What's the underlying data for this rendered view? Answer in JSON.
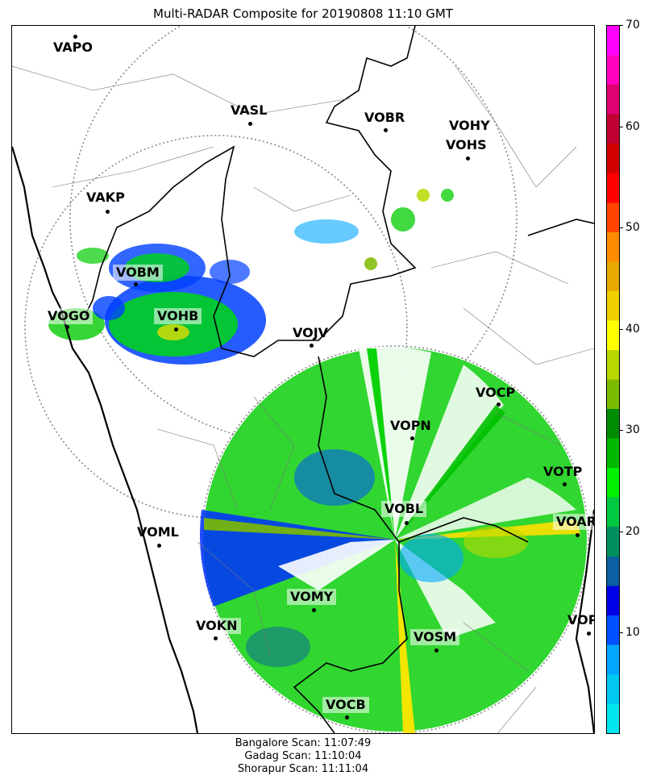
{
  "title": "Multi-RADAR Composite for 20190808 11:10 GMT",
  "stations": [
    {
      "id": "VAPO",
      "label": "VAPO"
    },
    {
      "id": "VASL",
      "label": "VASL"
    },
    {
      "id": "VOBR",
      "label": "VOBR"
    },
    {
      "id": "VOHY",
      "label": "VOHY"
    },
    {
      "id": "VOHS",
      "label": "VOHS"
    },
    {
      "id": "VAKP",
      "label": "VAKP"
    },
    {
      "id": "VOBM",
      "label": "VOBM"
    },
    {
      "id": "VOGO",
      "label": "VOGO"
    },
    {
      "id": "VOHB",
      "label": "VOHB"
    },
    {
      "id": "VOJV",
      "label": "VOJV"
    },
    {
      "id": "VOCP",
      "label": "VOCP"
    },
    {
      "id": "VOPN",
      "label": "VOPN"
    },
    {
      "id": "VOTP",
      "label": "VOTP"
    },
    {
      "id": "VOBL",
      "label": "VOBL"
    },
    {
      "id": "VOAR",
      "label": "VOAR"
    },
    {
      "id": "VOML",
      "label": "VOML"
    },
    {
      "id": "VOMY",
      "label": "VOMY"
    },
    {
      "id": "VOKN",
      "label": "VOKN"
    },
    {
      "id": "VOSM",
      "label": "VOSM"
    },
    {
      "id": "VOPC",
      "label": "VOPC"
    },
    {
      "id": "VOCB",
      "label": "VOCB"
    }
  ],
  "colorbar": {
    "ticks": [
      "10",
      "20",
      "30",
      "40",
      "50",
      "60",
      "70"
    ],
    "colors": [
      "#00e5ee",
      "#00c8f0",
      "#00a6ff",
      "#0050ff",
      "#0000e6",
      "#0a60a0",
      "#009060",
      "#00c840",
      "#00f000",
      "#00b800",
      "#008c00",
      "#7dbb00",
      "#b8d800",
      "#ffff00",
      "#f0d000",
      "#e8a800",
      "#ff8c00",
      "#ff4500",
      "#ff0000",
      "#d00000",
      "#c00030",
      "#e00070",
      "#ff00c0",
      "#ff00ff"
    ]
  },
  "scans": [
    "Bangalore Scan: 11:07:49",
    "Gadag Scan: 11:10:04",
    "Shorapur Scan: 11:11:04"
  ]
}
